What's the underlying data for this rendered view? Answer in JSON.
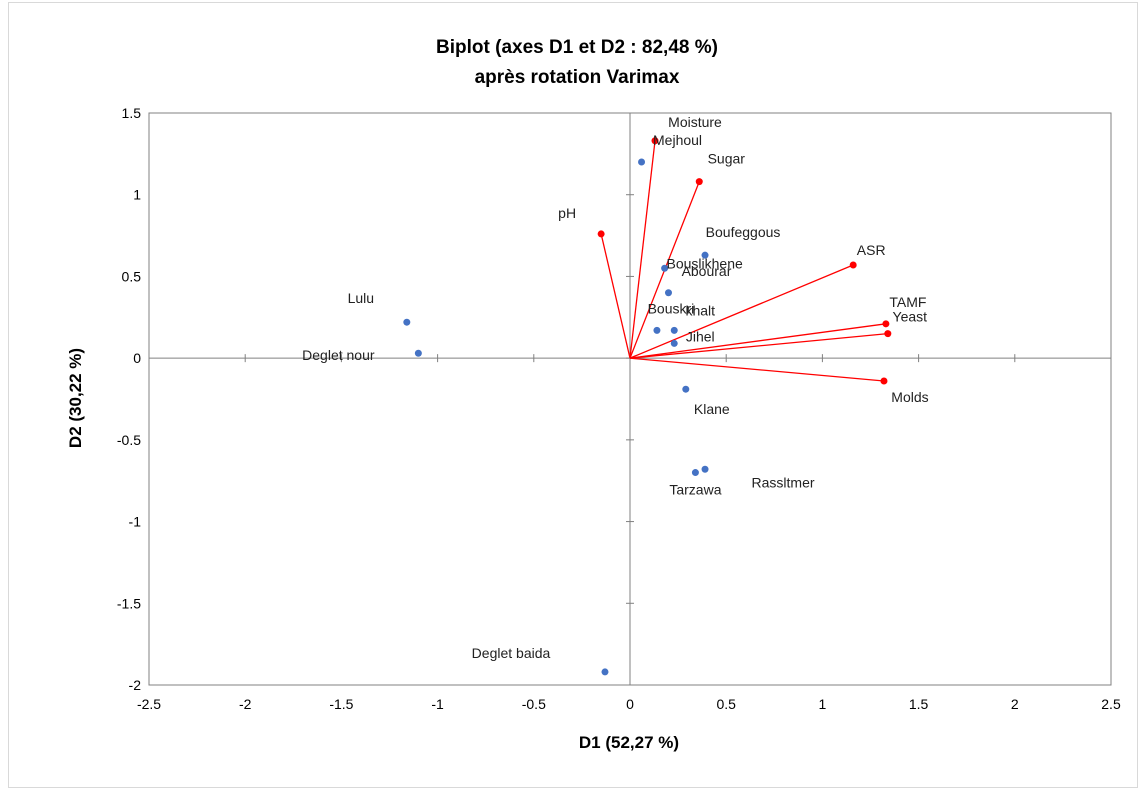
{
  "chart_data": {
    "type": "scatter",
    "title_line1": "Biplot (axes D1 et D2 : 82,48 %)",
    "title_line2": "après rotation Varimax",
    "xlabel": "D1 (52,27 %)",
    "ylabel": "D2 (30,22 %)",
    "xlim": [
      -2.5,
      2.5
    ],
    "ylim": [
      -2,
      1.5
    ],
    "xticks": [
      -2.5,
      -2,
      -1.5,
      -1,
      -0.5,
      0,
      0.5,
      1,
      1.5,
      2,
      2.5
    ],
    "yticks": [
      -2,
      -1.5,
      -1,
      -0.5,
      0,
      0.5,
      1,
      1.5
    ],
    "grid": false,
    "colors": {
      "observations": "#4472c4",
      "variables": "#ff0000",
      "axes": "#808080",
      "border": "#808080"
    },
    "observations": [
      {
        "label": "Mejhoul",
        "x": 0.06,
        "y": 1.2
      },
      {
        "label": "Boufeggous",
        "x": 0.39,
        "y": 0.63
      },
      {
        "label": "Bouslikhene",
        "x": 0.18,
        "y": 0.55
      },
      {
        "label": "Abourar",
        "x": 0.2,
        "y": 0.4
      },
      {
        "label": "Bouskri",
        "x": 0.14,
        "y": 0.17
      },
      {
        "label": "khalt",
        "x": 0.23,
        "y": 0.17
      },
      {
        "label": "Jihel",
        "x": 0.23,
        "y": 0.09
      },
      {
        "label": "Lulu",
        "x": -1.16,
        "y": 0.22
      },
      {
        "label": "Deglet nour",
        "x": -1.1,
        "y": 0.03
      },
      {
        "label": "Klane",
        "x": 0.29,
        "y": -0.19
      },
      {
        "label": "Tarzawa",
        "x": 0.34,
        "y": -0.7
      },
      {
        "label": "Rassltmer",
        "x": 0.39,
        "y": -0.68
      },
      {
        "label": "Deglet baida",
        "x": -0.13,
        "y": -1.92
      }
    ],
    "variables": [
      {
        "label": "Moisture",
        "x": 0.13,
        "y": 1.33
      },
      {
        "label": "Sugar",
        "x": 0.36,
        "y": 1.08
      },
      {
        "label": "pH",
        "x": -0.15,
        "y": 0.76
      },
      {
        "label": "ASR",
        "x": 1.16,
        "y": 0.57
      },
      {
        "label": "TAMF",
        "x": 1.33,
        "y": 0.21
      },
      {
        "label": "Yeast",
        "x": 1.34,
        "y": 0.15
      },
      {
        "label": "Molds",
        "x": 1.32,
        "y": -0.14
      }
    ]
  }
}
